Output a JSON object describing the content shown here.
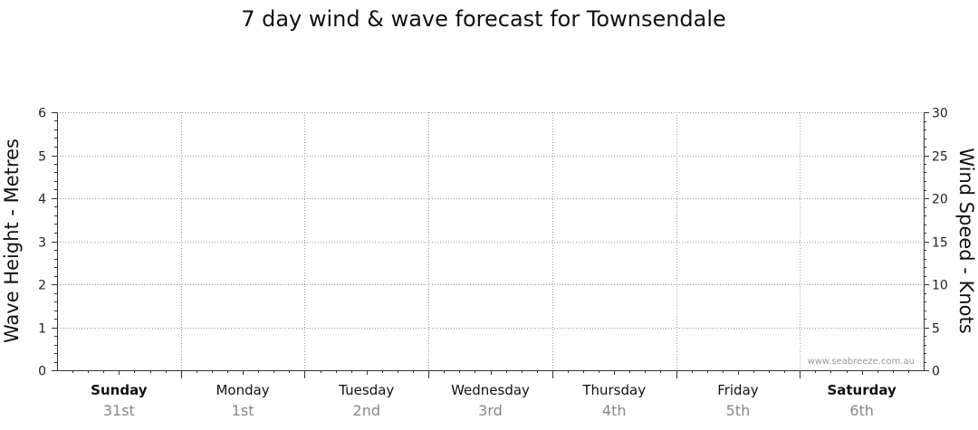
{
  "chart_data": {
    "type": "line",
    "title": "7 day wind & wave forecast for Townsendale",
    "ylabel_left": "Wave Height - Metres",
    "ylabel_right": "Wind Speed - Knots",
    "ylim_left": [
      0,
      6
    ],
    "ylim_right": [
      0,
      30
    ],
    "yticks_left": [
      "0",
      "1",
      "2",
      "3",
      "4",
      "5",
      "6"
    ],
    "yticks_right": [
      "0",
      "5",
      "10",
      "15",
      "20",
      "25",
      "30"
    ],
    "grid": true,
    "days": [
      {
        "day": "Sunday",
        "date": "31st",
        "bold": true
      },
      {
        "day": "Monday",
        "date": "1st",
        "bold": false
      },
      {
        "day": "Tuesday",
        "date": "2nd",
        "bold": false
      },
      {
        "day": "Wednesday",
        "date": "3rd",
        "bold": false
      },
      {
        "day": "Thursday",
        "date": "4th",
        "bold": false
      },
      {
        "day": "Friday",
        "date": "5th",
        "bold": false
      },
      {
        "day": "Saturday",
        "date": "6th",
        "bold": true
      }
    ],
    "series": [],
    "watermark": "www.seabreeze.com.au"
  }
}
